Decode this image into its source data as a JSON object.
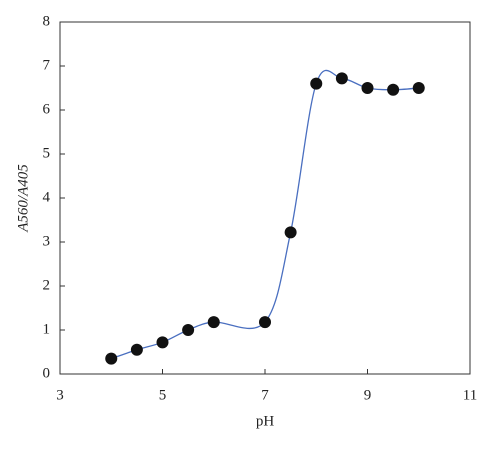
{
  "chart_data": {
    "type": "line",
    "xlabel": "pH",
    "ylabel": "A560/A405",
    "x": [
      4,
      4.5,
      5,
      5.5,
      6,
      7,
      7.5,
      8,
      8.5,
      9,
      9.5,
      10
    ],
    "series": [
      {
        "color": "#4a6fc0",
        "marker_color": "#111111",
        "values": [
          0.35,
          0.55,
          0.72,
          1.0,
          1.18,
          1.18,
          3.22,
          6.6,
          6.72,
          6.5,
          6.46,
          6.5
        ]
      }
    ],
    "xlim": [
      3,
      11
    ],
    "xticks": [
      3,
      5,
      7,
      9,
      11
    ],
    "ylim": [
      0,
      8
    ],
    "yticks": [
      0,
      1,
      2,
      3,
      4,
      5,
      6,
      7,
      8
    ],
    "grid": false
  }
}
